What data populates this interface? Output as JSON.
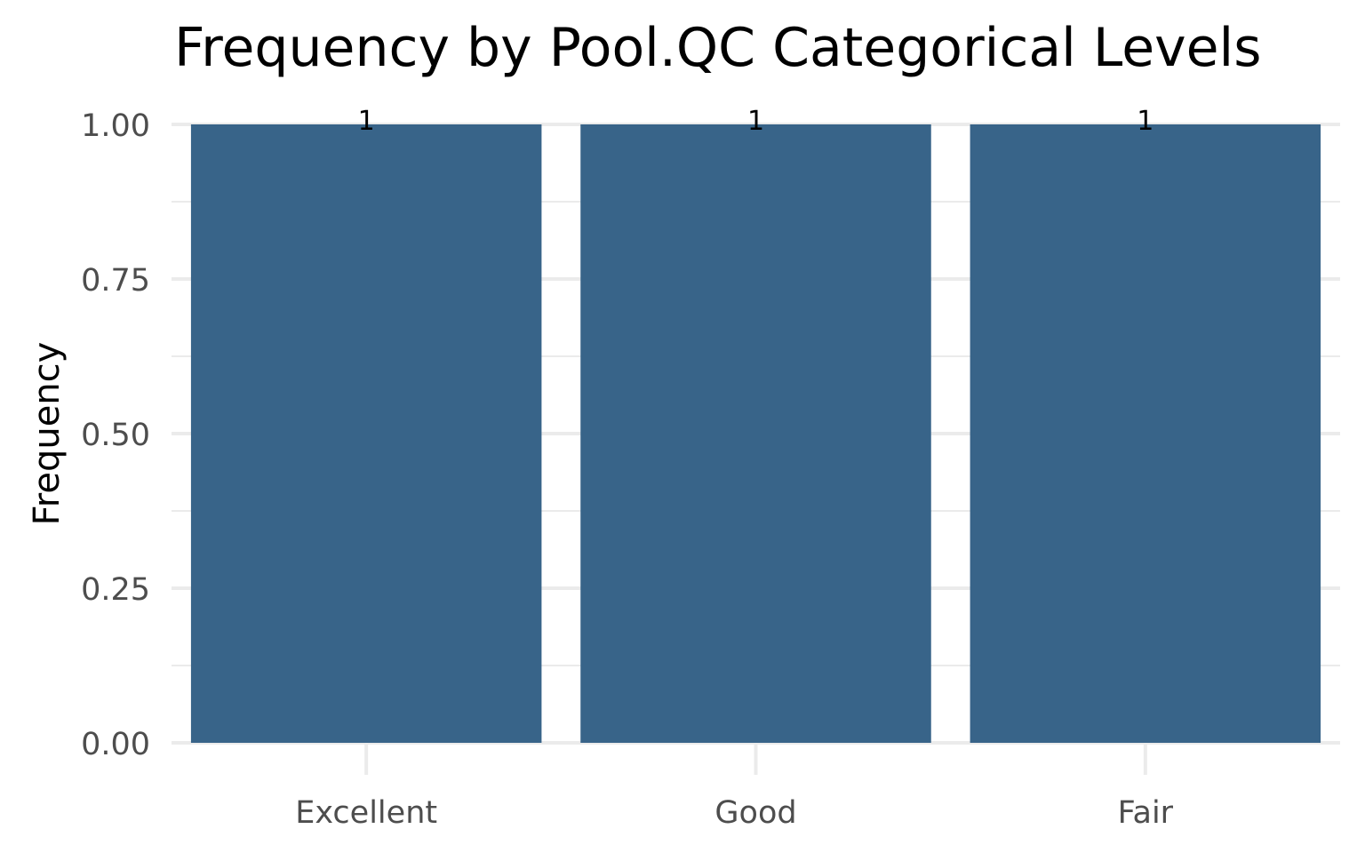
{
  "chart_data": {
    "type": "bar",
    "title": "Frequency by Pool.QC Categorical Levels",
    "xlabel": "",
    "ylabel": "Frequency",
    "categories": [
      "Excellent",
      "Good",
      "Fair"
    ],
    "values": [
      1,
      1,
      1
    ],
    "data_labels": [
      "1",
      "1",
      "1"
    ],
    "ylim": [
      0,
      1
    ],
    "y_ticks": [
      0,
      0.25,
      0.5,
      0.75,
      1
    ],
    "y_tick_labels": [
      "0.00",
      "0.25",
      "0.50",
      "0.75",
      "1.00"
    ],
    "y_minor_ticks": [
      0.125,
      0.375,
      0.625,
      0.875
    ],
    "grid": true,
    "legend": "none",
    "bar_color": "#386489",
    "grid_color": "#ebebeb"
  }
}
